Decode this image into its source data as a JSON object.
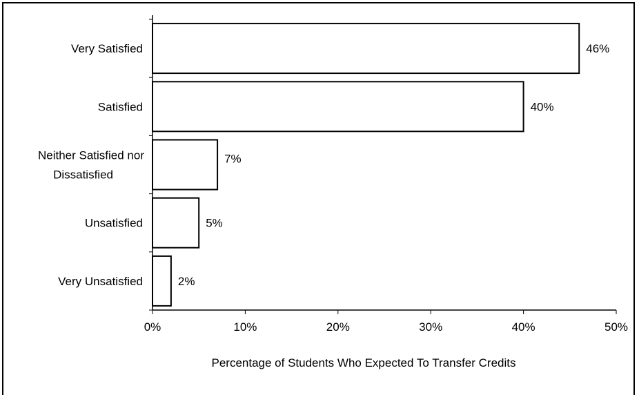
{
  "chart_data": {
    "type": "bar",
    "orientation": "horizontal",
    "categories": [
      "Very Satisfied",
      "Satisfied",
      "Neither Satisfied nor Dissatisfied",
      "Unsatisfied",
      "Very Unsatisfied"
    ],
    "values": [
      46,
      40,
      7,
      5,
      2
    ],
    "data_labels": [
      "46%",
      "40%",
      "7%",
      "5%",
      "2%"
    ],
    "xlabel": "Percentage of Students Who Expected To Transfer Credits",
    "ylabel": "",
    "xlim": [
      0,
      50
    ],
    "x_ticks": [
      0,
      10,
      20,
      30,
      40,
      50
    ],
    "x_tick_labels": [
      "0%",
      "10%",
      "20%",
      "30%",
      "40%",
      "50%"
    ],
    "grid": false,
    "legend": "none",
    "colors": {
      "bar_fill": "#ffffff",
      "bar_stroke": "#000000"
    }
  }
}
